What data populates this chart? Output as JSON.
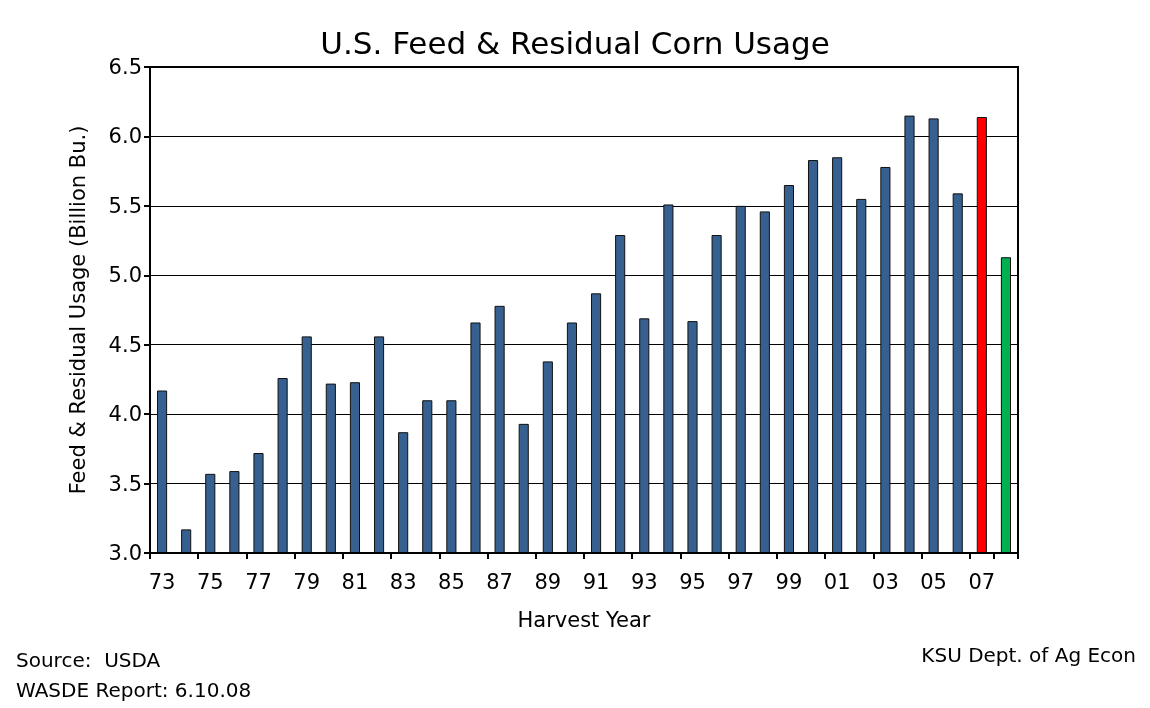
{
  "chart_data": {
    "type": "bar",
    "title": "U.S. Feed & Residual Corn Usage",
    "xlabel": "Harvest Year",
    "ylabel": "Feed & Residual Usage (Billion Bu.)",
    "categories": [
      "73",
      null,
      "75",
      null,
      "77",
      null,
      "79",
      null,
      "81",
      null,
      "83",
      null,
      "85",
      null,
      "87",
      null,
      "89",
      null,
      "91",
      null,
      "93",
      null,
      "95",
      null,
      "97",
      null,
      "99",
      null,
      "01",
      null,
      "03",
      null,
      "05",
      null,
      "07",
      null
    ],
    "values": [
      4.17,
      3.17,
      3.57,
      3.59,
      3.72,
      4.26,
      4.56,
      4.22,
      4.23,
      4.56,
      3.87,
      4.1,
      4.1,
      4.66,
      4.78,
      3.93,
      4.38,
      4.66,
      4.87,
      5.29,
      4.69,
      5.51,
      4.67,
      5.29,
      5.5,
      5.46,
      5.65,
      5.83,
      5.85,
      5.55,
      5.78,
      6.15,
      6.13,
      5.59,
      6.14,
      5.13
    ],
    "colors": [
      "#36608f",
      "#36608f",
      "#36608f",
      "#36608f",
      "#36608f",
      "#36608f",
      "#36608f",
      "#36608f",
      "#36608f",
      "#36608f",
      "#36608f",
      "#36608f",
      "#36608f",
      "#36608f",
      "#36608f",
      "#36608f",
      "#36608f",
      "#36608f",
      "#36608f",
      "#36608f",
      "#36608f",
      "#36608f",
      "#36608f",
      "#36608f",
      "#36608f",
      "#36608f",
      "#36608f",
      "#36608f",
      "#36608f",
      "#36608f",
      "#36608f",
      "#36608f",
      "#36608f",
      "#36608f",
      "#ff0000",
      "#00b050"
    ],
    "ylim": [
      3.0,
      6.5
    ],
    "yticks": [
      {
        "value": 3.0,
        "label": "3.0"
      },
      {
        "value": 3.5,
        "label": "3.5"
      },
      {
        "value": 4.0,
        "label": "4.0"
      },
      {
        "value": 4.5,
        "label": "4.5"
      },
      {
        "value": 5.0,
        "label": "5.0"
      },
      {
        "value": 5.5,
        "label": "5.5"
      },
      {
        "value": 6.0,
        "label": "6.0"
      },
      {
        "value": 6.5,
        "label": "6.5"
      }
    ],
    "grid": "y",
    "annotations": [
      "Source:  USDA",
      "WASDE Report: 6.10.08",
      "KSU Dept. of Ag Econ"
    ]
  }
}
